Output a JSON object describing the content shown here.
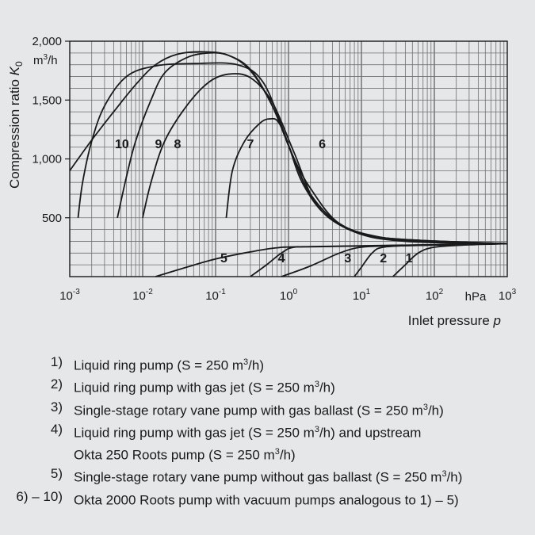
{
  "chart_data": {
    "type": "line",
    "x_scale": "log",
    "xlim": [
      0.001,
      1000
    ],
    "ylim": [
      0,
      2000
    ],
    "x_ticks": [
      {
        "value": 0.001,
        "base": "10",
        "exp": "-3"
      },
      {
        "value": 0.01,
        "base": "10",
        "exp": "-2"
      },
      {
        "value": 0.1,
        "base": "10",
        "exp": "-1"
      },
      {
        "value": 1,
        "base": "10",
        "exp": "0"
      },
      {
        "value": 10,
        "base": "10",
        "exp": "1"
      },
      {
        "value": 100,
        "base": "10",
        "exp": "2"
      },
      {
        "value": 1000,
        "base": "10",
        "exp": "3"
      }
    ],
    "x_unit": "hPa",
    "y_ticks": [
      {
        "value": 500,
        "label": "500"
      },
      {
        "value": 1000,
        "label": "1,000"
      },
      {
        "value": 1500,
        "label": "1,500"
      },
      {
        "value": 2000,
        "label": "2,000"
      }
    ],
    "y_unit_base": "m",
    "y_unit_sup": "3",
    "y_unit_tail": "/h",
    "xlabel": "Inlet pressure",
    "xlabel_symbol": "p",
    "ylabel": "Compression ratio",
    "ylabel_symbol": "K",
    "ylabel_sub": "0",
    "grid": true,
    "series": [
      {
        "name": "1",
        "label_at": [
          45,
          120
        ],
        "points": [
          [
            27,
            0
          ],
          [
            40,
            100
          ],
          [
            60,
            200
          ],
          [
            100,
            250
          ],
          [
            300,
            270
          ],
          [
            1000,
            280
          ]
        ]
      },
      {
        "name": "2",
        "label_at": [
          20,
          120
        ],
        "points": [
          [
            8,
            0
          ],
          [
            10,
            80
          ],
          [
            14,
            200
          ],
          [
            20,
            250
          ],
          [
            60,
            265
          ],
          [
            1000,
            280
          ]
        ]
      },
      {
        "name": "3",
        "label_at": [
          6.5,
          120
        ],
        "points": [
          [
            0.8,
            0
          ],
          [
            2,
            90
          ],
          [
            5,
            200
          ],
          [
            10,
            250
          ],
          [
            30,
            262
          ],
          [
            1000,
            280
          ]
        ]
      },
      {
        "name": "4",
        "label_at": [
          0.8,
          120
        ],
        "points": [
          [
            0.3,
            0
          ],
          [
            0.5,
            100
          ],
          [
            0.8,
            200
          ],
          [
            1.2,
            250
          ],
          [
            3,
            255
          ],
          [
            1000,
            280
          ]
        ]
      },
      {
        "name": "5",
        "label_at": [
          0.13,
          120
        ],
        "points": [
          [
            0.015,
            0
          ],
          [
            0.04,
            80
          ],
          [
            0.1,
            150
          ],
          [
            0.3,
            210
          ],
          [
            0.7,
            245
          ],
          [
            2,
            255
          ],
          [
            1000,
            280
          ]
        ]
      },
      {
        "name": "6",
        "label_at": [
          2.9,
          1090
        ],
        "points": [
          [
            0.14,
            500
          ],
          [
            0.17,
            900
          ],
          [
            0.25,
            1150
          ],
          [
            0.4,
            1300
          ],
          [
            0.55,
            1340
          ],
          [
            0.75,
            1300
          ],
          [
            1.2,
            1000
          ],
          [
            2,
            750
          ],
          [
            5,
            450
          ],
          [
            20,
            330
          ],
          [
            100,
            290
          ],
          [
            1000,
            280
          ]
        ]
      },
      {
        "name": "7",
        "label_at": [
          0.3,
          1090
        ],
        "points": [
          [
            0.01,
            500
          ],
          [
            0.013,
            800
          ],
          [
            0.02,
            1150
          ],
          [
            0.04,
            1450
          ],
          [
            0.08,
            1650
          ],
          [
            0.15,
            1720
          ],
          [
            0.3,
            1690
          ],
          [
            0.6,
            1480
          ],
          [
            1.2,
            1050
          ],
          [
            2.5,
            600
          ],
          [
            8,
            380
          ],
          [
            40,
            300
          ],
          [
            1000,
            280
          ]
        ]
      },
      {
        "name": "8",
        "label_at": [
          0.03,
          1090
        ],
        "points": [
          [
            0.0013,
            500
          ],
          [
            0.0015,
            800
          ],
          [
            0.002,
            1150
          ],
          [
            0.003,
            1450
          ],
          [
            0.006,
            1700
          ],
          [
            0.015,
            1790
          ],
          [
            0.05,
            1810
          ],
          [
            0.2,
            1800
          ],
          [
            0.45,
            1650
          ],
          [
            0.9,
            1200
          ],
          [
            1.6,
            780
          ],
          [
            4,
            480
          ],
          [
            20,
            330
          ],
          [
            1000,
            280
          ]
        ]
      },
      {
        "name": "9",
        "label_at": [
          0.0165,
          1090
        ],
        "points": [
          [
            0.0045,
            500
          ],
          [
            0.006,
            850
          ],
          [
            0.008,
            1150
          ],
          [
            0.013,
            1500
          ],
          [
            0.02,
            1730
          ],
          [
            0.04,
            1860
          ],
          [
            0.08,
            1900
          ],
          [
            0.15,
            1880
          ],
          [
            0.3,
            1760
          ],
          [
            0.6,
            1450
          ],
          [
            1.1,
            1050
          ],
          [
            2,
            700
          ],
          [
            5,
            450
          ],
          [
            20,
            330
          ],
          [
            1000,
            280
          ]
        ]
      },
      {
        "name": "10",
        "label_at": [
          0.0052,
          1090
        ],
        "points": [
          [
            0.001,
            900
          ],
          [
            0.002,
            1160
          ],
          [
            0.004,
            1400
          ],
          [
            0.008,
            1630
          ],
          [
            0.015,
            1800
          ],
          [
            0.03,
            1890
          ],
          [
            0.07,
            1910
          ],
          [
            0.15,
            1880
          ],
          [
            0.3,
            1750
          ],
          [
            0.6,
            1450
          ],
          [
            1.1,
            1050
          ],
          [
            2,
            700
          ],
          [
            5,
            450
          ],
          [
            20,
            330
          ],
          [
            1000,
            280
          ]
        ]
      }
    ]
  },
  "legend": [
    {
      "num": "1)",
      "pre": "Liquid ring pump (S = 250 m",
      "sup": "3",
      "post": "/h)"
    },
    {
      "num": "2)",
      "pre": "Liquid ring pump with gas jet (S = 250 m",
      "sup": "3",
      "post": "/h)"
    },
    {
      "num": "3)",
      "pre": "Single-stage rotary vane pump with gas ballast (S = 250 m",
      "sup": "3",
      "post": "/h)"
    },
    {
      "num": "4)",
      "pre": "Liquid ring pump with gas jet (S = 250 m",
      "sup": "3",
      "post": "/h) and upstream"
    },
    {
      "num": "",
      "pre": "Okta 250 Roots pump (S = 250 m",
      "sup": "3",
      "post": "/h)"
    },
    {
      "num": "5)",
      "pre": "Single-stage rotary vane pump without gas ballast (S = 250 m",
      "sup": "3",
      "post": "/h)"
    },
    {
      "num": "6) – 10)",
      "pre": "Okta 2000 Roots pump with vacuum pumps analogous to 1) – 5)",
      "sup": "",
      "post": ""
    }
  ]
}
